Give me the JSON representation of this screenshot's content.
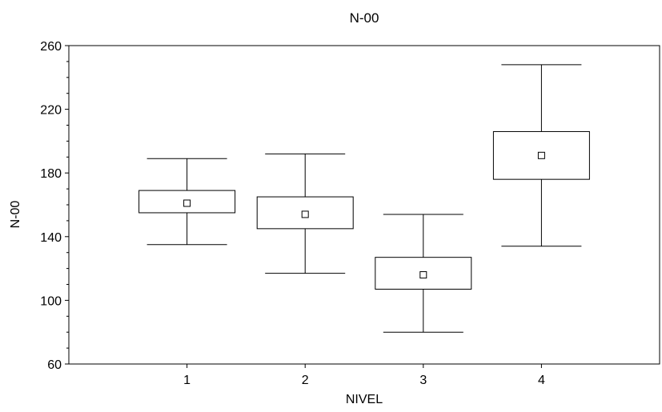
{
  "chart_data": {
    "type": "boxplot",
    "title": "N-00",
    "xlabel": "NIVEL",
    "ylabel": "N-00",
    "categories": [
      "1",
      "2",
      "3",
      "4"
    ],
    "boxes": [
      {
        "category": "1",
        "whisker_low": 135,
        "box_low": 155,
        "mean": 161,
        "box_high": 169,
        "whisker_high": 189
      },
      {
        "category": "2",
        "whisker_low": 117,
        "box_low": 145,
        "mean": 154,
        "box_high": 165,
        "whisker_high": 192
      },
      {
        "category": "3",
        "whisker_low": 80,
        "box_low": 107,
        "mean": 116,
        "box_high": 127,
        "whisker_high": 154
      },
      {
        "category": "4",
        "whisker_low": 134,
        "box_low": 176,
        "mean": 191,
        "box_high": 206,
        "whisker_high": 248
      }
    ],
    "ylim": [
      60,
      260
    ],
    "yticks": [
      "60",
      "100",
      "140",
      "180",
      "220",
      "260"
    ],
    "xlim": [
      0,
      5
    ],
    "grid": false,
    "legend": "none"
  }
}
